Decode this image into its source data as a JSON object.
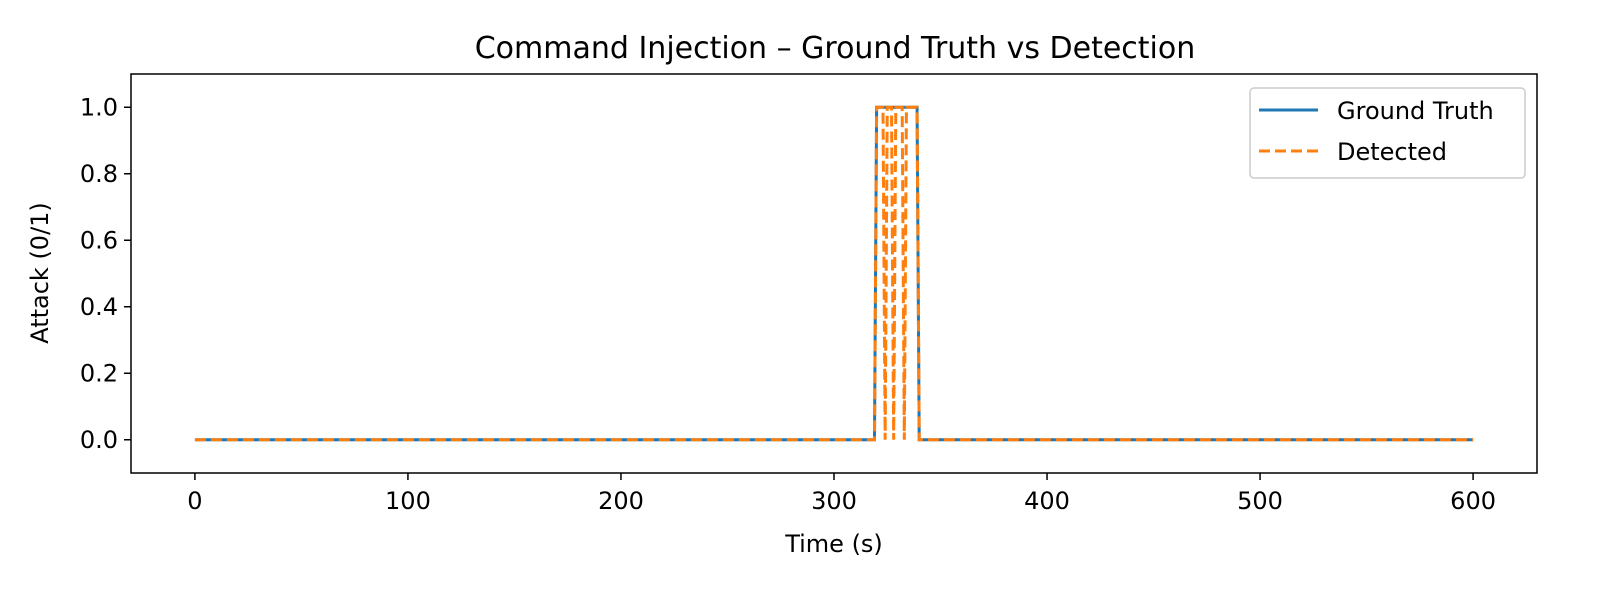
{
  "chart_data": {
    "type": "line",
    "title": "Command Injection – Ground Truth vs Detection",
    "xlabel": "Time (s)",
    "ylabel": "Attack (0/1)",
    "xlim": [
      -30,
      630
    ],
    "ylim": [
      -0.1,
      1.1
    ],
    "x_ticks": [
      0,
      100,
      200,
      300,
      400,
      500,
      600
    ],
    "x_tick_labels": [
      "0",
      "100",
      "200",
      "300",
      "400",
      "500",
      "600"
    ],
    "y_ticks": [
      0.0,
      0.2,
      0.4,
      0.6,
      0.8,
      1.0
    ],
    "y_tick_labels": [
      "0.0",
      "0.2",
      "0.4",
      "0.6",
      "0.8",
      "1.0"
    ],
    "grid": false,
    "legend_position": "top-right",
    "legend": [
      "Ground Truth",
      "Detected"
    ],
    "series": [
      {
        "name": "Ground Truth",
        "style": "solid",
        "color": "#1f77b4",
        "points": [
          [
            0,
            0
          ],
          [
            319,
            0
          ],
          [
            320,
            1
          ],
          [
            339,
            1
          ],
          [
            340,
            0
          ],
          [
            600,
            0
          ]
        ]
      },
      {
        "name": "Detected",
        "style": "dashed",
        "color": "#ff7f0e",
        "points": [
          [
            0,
            0
          ],
          [
            319,
            0
          ],
          [
            320,
            1
          ],
          [
            323,
            1
          ],
          [
            324,
            0
          ],
          [
            325,
            1
          ],
          [
            327,
            1
          ],
          [
            328,
            0
          ],
          [
            329,
            1
          ],
          [
            332,
            1
          ],
          [
            333,
            0
          ],
          [
            334,
            1
          ],
          [
            339,
            1
          ],
          [
            340,
            0
          ],
          [
            600,
            0
          ]
        ]
      }
    ]
  }
}
